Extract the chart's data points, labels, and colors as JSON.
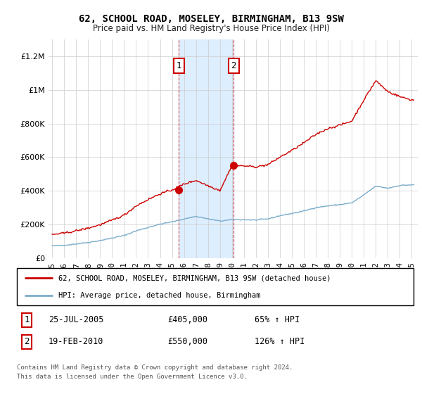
{
  "title": "62, SCHOOL ROAD, MOSELEY, BIRMINGHAM, B13 9SW",
  "subtitle": "Price paid vs. HM Land Registry's House Price Index (HPI)",
  "legend_line1": "62, SCHOOL ROAD, MOSELEY, BIRMINGHAM, B13 9SW (detached house)",
  "legend_line2": "HPI: Average price, detached house, Birmingham",
  "sale1_date_str": "25-JUL-2005",
  "sale1_year_f": 2005.56,
  "sale1_price": 405000,
  "sale1_hpi_pct": "65% ↑ HPI",
  "sale2_date_str": "19-FEB-2010",
  "sale2_year_f": 2010.13,
  "sale2_price": 550000,
  "sale2_hpi_pct": "126% ↑ HPI",
  "footer": "Contains HM Land Registry data © Crown copyright and database right 2024.\nThis data is licensed under the Open Government Licence v3.0.",
  "red_color": "#cc0000",
  "blue_color": "#7aadcc",
  "shade_color": "#ddeeff",
  "grid_color": "#cccccc",
  "dashed_color": "#cc0000",
  "ylim_max": 1300000,
  "xlim_start": 1994.7,
  "xlim_end": 2025.5
}
